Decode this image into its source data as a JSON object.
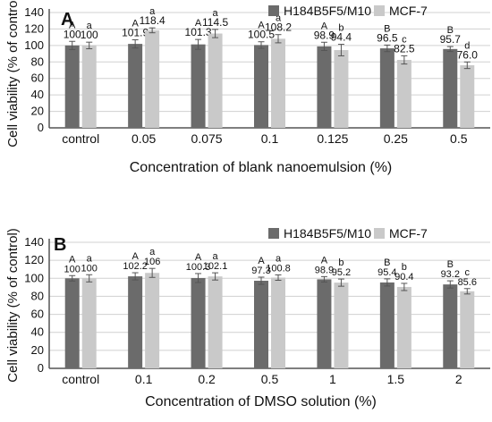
{
  "colors": {
    "h184": "#6b6b6b",
    "mcf7": "#c9c9c9",
    "axis": "#555555",
    "grid": "#d0d0d0",
    "error_bar": "#555555"
  },
  "chart_data": [
    {
      "type": "bar",
      "panel_label": "A",
      "categories": [
        "control",
        "0.05",
        "0.075",
        "0.1",
        "0.125",
        "0.25",
        "0.5"
      ],
      "series": [
        {
          "name": "H184B5F5/M10",
          "values": [
            100,
            101.9,
            101.3,
            100.5,
            98.9,
            96.5,
            95.7
          ],
          "errors": [
            5,
            5,
            6,
            4,
            5,
            4,
            3
          ],
          "value_labels": [
            "100",
            "101.9",
            "101.3",
            "100.5",
            "98.9",
            "96.5",
            "95.7"
          ],
          "letters": [
            "A",
            "A",
            "A",
            "A",
            "A",
            "B",
            "B"
          ]
        },
        {
          "name": "MCF-7",
          "values": [
            100,
            118.4,
            114.5,
            108.2,
            94.4,
            82.5,
            76.0
          ],
          "errors": [
            4,
            3,
            5,
            5,
            7,
            5,
            4
          ],
          "value_labels": [
            "100",
            "118.4",
            "114.5",
            "108.2",
            "94.4",
            "82.5",
            "76.0"
          ],
          "letters": [
            "a",
            "a",
            "a",
            "a",
            "b",
            "c",
            "d"
          ]
        }
      ],
      "xlabel": "Concentration of blank nanoemulsion (%)",
      "ylabel": "Cell viability (% of control)",
      "ylim": [
        0,
        140
      ],
      "yticks": [
        0,
        20,
        40,
        60,
        80,
        100,
        120,
        140
      ],
      "grid": true,
      "legend": "top-right"
    },
    {
      "type": "bar",
      "panel_label": "B",
      "categories": [
        "control",
        "0.1",
        "0.2",
        "0.5",
        "1",
        "1.5",
        "2"
      ],
      "series": [
        {
          "name": "H184B5F5/M10",
          "values": [
            100,
            102.2,
            100.3,
            97.3,
            98.9,
            95.4,
            93.2
          ],
          "errors": [
            3,
            4,
            5,
            4,
            3,
            4,
            4
          ],
          "value_labels": [
            "100",
            "102.2",
            "100.3",
            "97.3",
            "98.9",
            "95.4",
            "93.2"
          ],
          "letters": [
            "A",
            "A",
            "A",
            "A",
            "A",
            "B",
            "B"
          ]
        },
        {
          "name": "MCF-7",
          "values": [
            100,
            106,
            102.1,
            100.8,
            95.2,
            90.4,
            85.6
          ],
          "errors": [
            4,
            5,
            4,
            3,
            4,
            4,
            3
          ],
          "value_labels": [
            "100",
            "106",
            "102.1",
            "100.8",
            "95.2",
            "90.4",
            "85.6"
          ],
          "letters": [
            "a",
            "a",
            "a",
            "a",
            "b",
            "b",
            "c"
          ]
        }
      ],
      "xlabel": "Concentration of DMSO solution (%)",
      "ylabel": "Cell viability (% of control)",
      "ylim": [
        0,
        140
      ],
      "yticks": [
        0,
        20,
        40,
        60,
        80,
        100,
        120,
        140
      ],
      "grid": true,
      "legend": "top-right"
    }
  ]
}
